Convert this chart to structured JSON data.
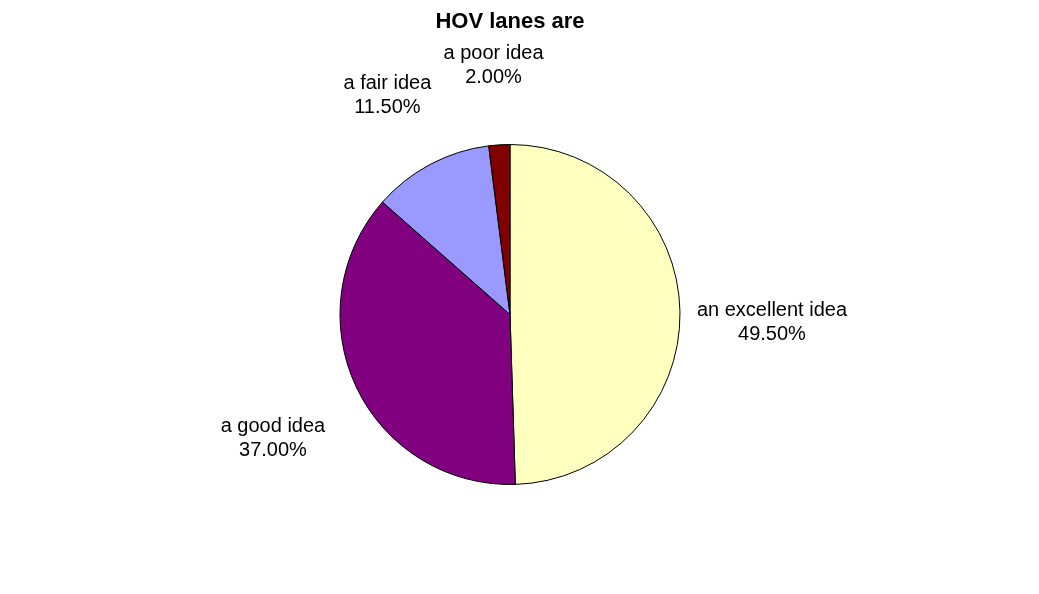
{
  "chart_data": {
    "type": "pie",
    "title": "HOV lanes are",
    "categories": [
      "an excellent idea",
      "a good idea",
      "a fair idea",
      "a poor idea"
    ],
    "values": [
      49.5,
      37.0,
      11.5,
      2.0
    ],
    "colors": [
      "#ffffc0",
      "#800080",
      "#9999ff",
      "#800000"
    ],
    "value_labels": [
      "49.50%",
      "37.00%",
      "11.50%",
      "2.00%"
    ],
    "legend": false
  }
}
